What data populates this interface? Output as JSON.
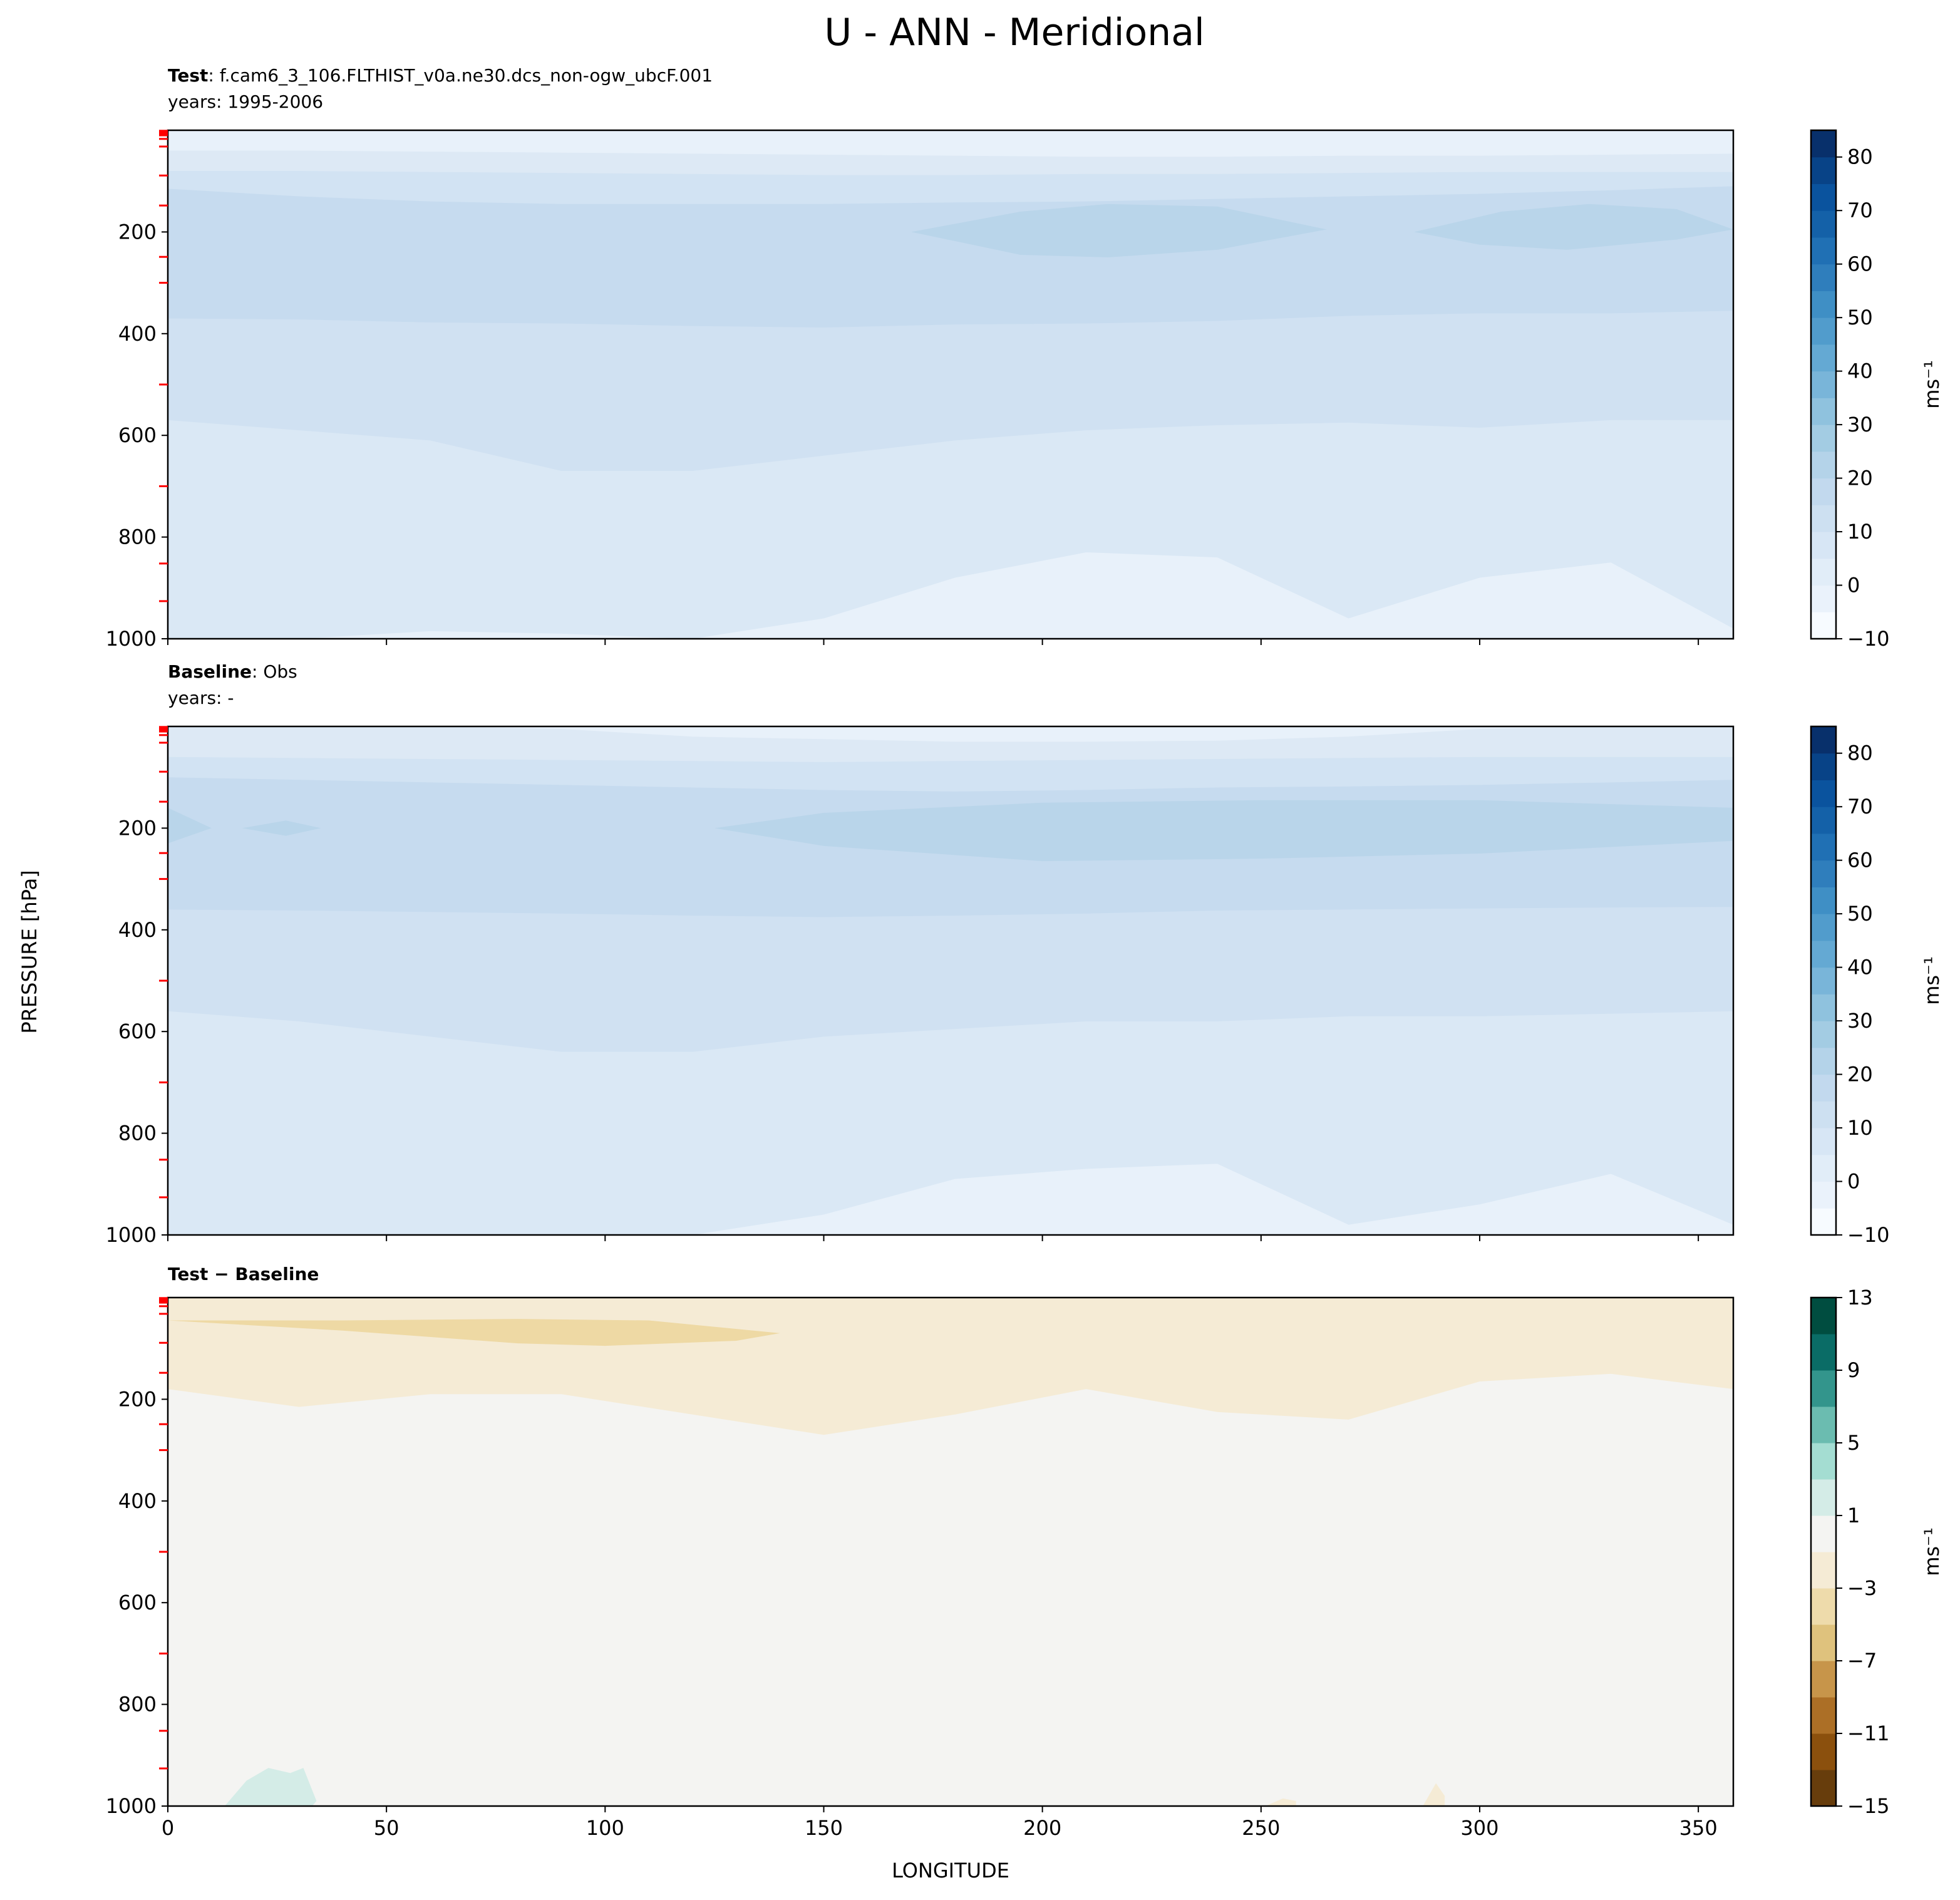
{
  "chart_data": {
    "type": "heatmap",
    "title": "U - ANN - Meridional",
    "xlabel": "LONGITUDE",
    "ylabel": "PRESSURE [hPa]",
    "xlim": [
      0,
      358
    ],
    "ylim": [
      1000,
      0
    ],
    "xticks": [
      0,
      50,
      100,
      150,
      200,
      250,
      300,
      350
    ],
    "yticks": [
      200,
      400,
      600,
      800,
      1000
    ],
    "model_levels": [
      1,
      2,
      3,
      5,
      7,
      10,
      17,
      32,
      89,
      148,
      249,
      300,
      500,
      700,
      852,
      926
    ],
    "lon_samples": [
      0,
      30,
      60,
      90,
      120,
      150,
      180,
      210,
      240,
      270,
      300,
      330,
      358
    ],
    "panels": [
      {
        "name": "test",
        "label_bold": "Test",
        "label_text": ": f.cam6_3_106.FLTHIST_v0a.ne30.dcs_non-ogw_ubcF.001",
        "years": "years: 1995-2006",
        "base_color": "#e8f1fa",
        "layers": [
          {
            "color": "#dde9f5",
            "p": [
              40,
              40,
              42,
              44,
              46,
              48,
              50,
              52,
              52,
              50,
              50,
              48,
              46
            ]
          },
          {
            "color": "#d2e3f3",
            "p": [
              80,
              80,
              82,
              84,
              86,
              88,
              88,
              86,
              86,
              84,
              82,
              82,
              82
            ]
          },
          {
            "color": "#c6dbef",
            "p": [
              115,
              130,
              140,
              145,
              145,
              145,
              142,
              140,
              135,
              130,
              125,
              118,
              110
            ]
          },
          {
            "color": "#d0e1f2",
            "p": [
              370,
              372,
              378,
              380,
              385,
              388,
              382,
              380,
              375,
              365,
              360,
              360,
              355
            ]
          },
          {
            "color": "#dae8f5",
            "p": [
              570,
              590,
              610,
              670,
              670,
              640,
              610,
              590,
              580,
              575,
              585,
              570,
              570
            ]
          },
          {
            "color": "#e8f1fa",
            "p": [
              1010,
              1005,
              985,
              990,
              1000,
              960,
              880,
              830,
              840,
              960,
              880,
              850,
              980
            ]
          }
        ],
        "blobs": [
          {
            "color": "#b9d5ea",
            "lon": [
              170,
              195,
              215,
              240,
              265,
              240,
              215,
              195
            ],
            "p": [
              200,
              160,
              145,
              150,
              195,
              235,
              250,
              245
            ]
          },
          {
            "color": "#b9d5ea",
            "lon": [
              285,
              305,
              325,
              345,
              358,
              345,
              320,
              300
            ],
            "p": [
              200,
              160,
              145,
              155,
              195,
              215,
              235,
              225
            ]
          }
        ],
        "colorbar": {
          "levels_min": -10,
          "levels_max": 85,
          "step": 5,
          "ticks": [
            -10,
            0,
            10,
            20,
            30,
            40,
            50,
            60,
            70,
            80
          ],
          "tick_labels": [
            "−10",
            "0",
            "10",
            "20",
            "30",
            "40",
            "50",
            "60",
            "70",
            "80"
          ],
          "colors": [
            "#f7fbff",
            "#eaf2fb",
            "#e1edf8",
            "#d7e6f5",
            "#cde0f1",
            "#c2d9ee",
            "#b4d3e9",
            "#a3cce3",
            "#8fc2de",
            "#79b5d9",
            "#64a9d3",
            "#519ccc",
            "#3f8fc5",
            "#2f7ebc",
            "#2070b4",
            "#1461a8",
            "#0a539e",
            "#084387",
            "#08306b"
          ],
          "unit": "ms⁻¹"
        }
      },
      {
        "name": "baseline",
        "label_bold": "Baseline",
        "label_text": ": Obs",
        "years": "years: -",
        "base_color": "#e8f1fa",
        "layers": [
          {
            "color": "#dde9f5",
            "p": [
              0,
              0,
              0,
              5,
              20,
              25,
              30,
              30,
              28,
              20,
              5,
              0,
              0
            ]
          },
          {
            "color": "#d2e3f3",
            "p": [
              60,
              62,
              64,
              66,
              68,
              70,
              68,
              66,
              64,
              62,
              60,
              60,
              60
            ]
          },
          {
            "color": "#c6dbef",
            "p": [
              100,
              105,
              110,
              115,
              120,
              125,
              128,
              125,
              120,
              118,
              115,
              110,
              105
            ]
          },
          {
            "color": "#d0e1f2",
            "p": [
              360,
              362,
              365,
              368,
              372,
              375,
              372,
              368,
              362,
              360,
              358,
              356,
              355
            ]
          },
          {
            "color": "#dae8f5",
            "p": [
              560,
              580,
              610,
              640,
              640,
              610,
              595,
              580,
              580,
              570,
              570,
              565,
              560
            ]
          },
          {
            "color": "#e8f1fa",
            "p": [
              1010,
              1010,
              1010,
              1010,
              1010,
              960,
              890,
              870,
              860,
              980,
              940,
              880,
              980
            ]
          }
        ],
        "blobs": [
          {
            "color": "#b9d5ea",
            "lon": [
              125,
              150,
              200,
              250,
              300,
              358,
              358,
              300,
              250,
              200,
              150
            ],
            "p": [
              200,
              170,
              150,
              145,
              145,
              160,
              225,
              250,
              260,
              265,
              235
            ]
          },
          {
            "color": "#b9d5ea",
            "lon": [
              0,
              10,
              0
            ],
            "p": [
              160,
              200,
              230
            ]
          },
          {
            "color": "#b9d5ea",
            "lon": [
              17,
              27,
              35,
              27
            ],
            "p": [
              200,
              185,
              200,
              215
            ]
          }
        ],
        "colorbar": {
          "levels_min": -10,
          "levels_max": 85,
          "step": 5,
          "ticks": [
            -10,
            0,
            10,
            20,
            30,
            40,
            50,
            60,
            70,
            80
          ],
          "tick_labels": [
            "−10",
            "0",
            "10",
            "20",
            "30",
            "40",
            "50",
            "60",
            "70",
            "80"
          ],
          "colors": [
            "#f7fbff",
            "#eaf2fb",
            "#e1edf8",
            "#d7e6f5",
            "#cde0f1",
            "#c2d9ee",
            "#b4d3e9",
            "#a3cce3",
            "#8fc2de",
            "#79b5d9",
            "#64a9d3",
            "#519ccc",
            "#3f8fc5",
            "#2f7ebc",
            "#2070b4",
            "#1461a8",
            "#0a539e",
            "#084387",
            "#08306b"
          ],
          "unit": "ms⁻¹"
        }
      },
      {
        "name": "difference",
        "label_bold": "Test − Baseline",
        "label_text": "",
        "years": "",
        "base_color": "#f5ebd5",
        "layers": [
          {
            "color": "#f4f4f2",
            "p": [
              180,
              215,
              190,
              190,
              230,
              270,
              230,
              180,
              225,
              240,
              165,
              150,
              180
            ]
          }
        ],
        "blobs": [
          {
            "color": "#eed9a4",
            "lon": [
              0,
              40,
              80,
              110,
              140,
              130,
              100,
              80,
              40,
              0
            ],
            "p": [
              45,
              45,
              42,
              45,
              70,
              85,
              95,
              90,
              65,
              45
            ]
          },
          {
            "color": "#f5ebd5",
            "lon": [
              0,
              358,
              358,
              0
            ],
            "p": [
              0,
              0,
              8,
              8
            ]
          },
          {
            "color": "#d4ece7",
            "lon": [
              13,
              18,
              23,
              28,
              31,
              34,
              33,
              13
            ],
            "p": [
              1000,
              950,
              925,
              935,
              925,
              990,
              1000,
              1000
            ]
          },
          {
            "color": "#f5ebd5",
            "lon": [
              251,
              255,
              258,
              258,
              251
            ],
            "p": [
              1000,
              985,
              990,
              1000,
              1000
            ]
          },
          {
            "color": "#f5ebd5",
            "lon": [
              287,
              290,
              292,
              292,
              286
            ],
            "p": [
              1000,
              955,
              980,
              1000,
              1000
            ]
          }
        ],
        "colorbar": {
          "levels_min": -15,
          "levels_max": 13,
          "step": 2,
          "ticks": [
            -15,
            -11,
            -7,
            -3,
            1,
            5,
            9,
            13
          ],
          "tick_labels": [
            "−15",
            "−11",
            "−7",
            "−3",
            "1",
            "5",
            "9",
            "13"
          ],
          "colors": [
            "#673d0c",
            "#8b500d",
            "#ac6f26",
            "#c7954a",
            "#dfc27d",
            "#eedbab",
            "#f5ebd5",
            "#f4f4f2",
            "#d4ece7",
            "#a4ddd2",
            "#6bbcb0",
            "#33958c",
            "#0a6c66",
            "#004d40"
          ],
          "unit": "ms⁻¹"
        }
      }
    ]
  }
}
